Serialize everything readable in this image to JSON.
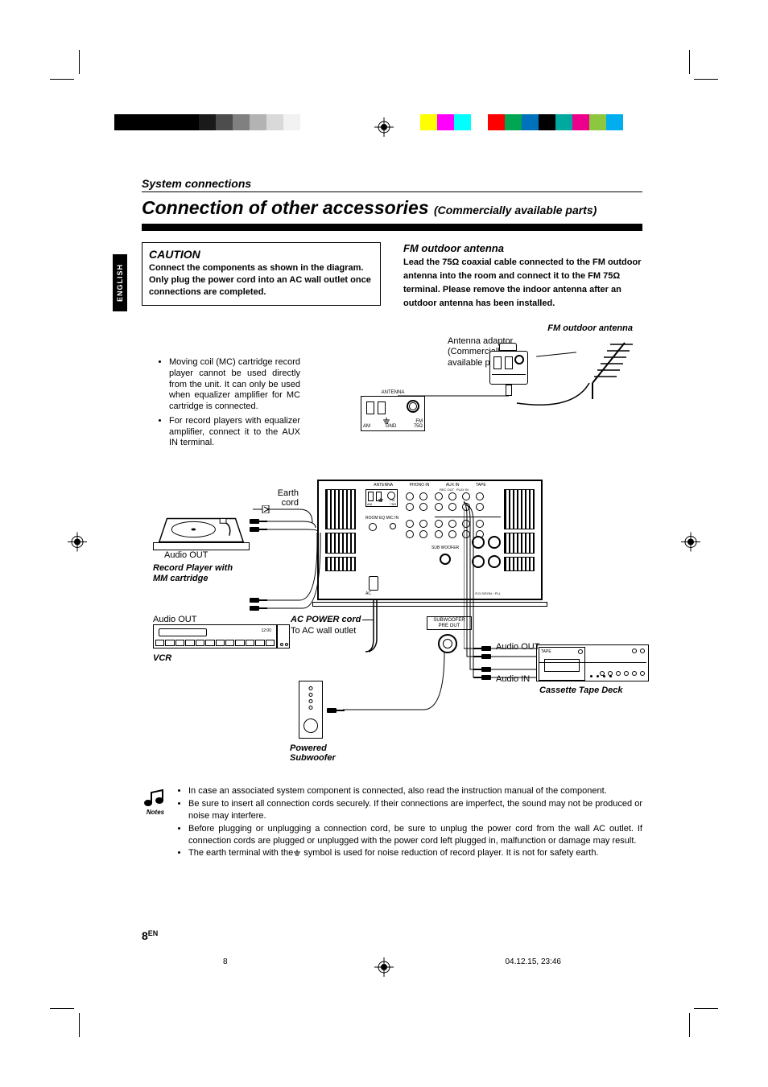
{
  "page": {
    "number": "8",
    "lang_suffix": "EN",
    "section_header": "System connections",
    "title_main": "Connection of other accessories",
    "title_sub": "(Commercially available parts)",
    "lang_tab": "ENGLISH"
  },
  "caution": {
    "heading": "CAUTION",
    "body": "Connect the components as shown in the diagram. Only plug the power cord into an AC wall outlet once connections are completed."
  },
  "fm": {
    "heading": "FM outdoor antenna",
    "body_parts": [
      "Lead the 75",
      " coaxial cable connected to the FM outdoor antenna into the room and connect it to the FM 75",
      " terminal. Please remove the indoor antenna after an outdoor antenna has been installed."
    ]
  },
  "diagram": {
    "fm_outdoor_label": "FM outdoor antenna",
    "adaptor_label": "Antenna adaptor (Commercially available parts)",
    "bullets": [
      "Moving coil (MC) cartridge record player cannot be used directly from the unit. It can only be used  when equalizer amplifier for MC cartridge is connected.",
      "For record players with equalizer amplifier, connect it to the AUX IN terminal."
    ],
    "earth_cord": "Earth cord",
    "audio_out": "Audio OUT",
    "audio_in": "Audio IN",
    "record_player": "Record Player with MM cartridge",
    "ac_power": "AC POWER cord",
    "ac_wall": "To AC wall outlet",
    "vcr": "VCR",
    "cassette": "Cassette Tape Deck",
    "powered_sub": "Powered Subwoofer",
    "subwoofer_preout": "SUBWOOFER PRE OUT",
    "antenna_box": "ANTENNA",
    "am": "AM",
    "gnd": "GND",
    "fm75": "FM 75Ω",
    "rear_labels": [
      "ANTENNA",
      "PHONO IN",
      "AUX IN",
      "TAPE",
      "REC OUT",
      "PLAY IN"
    ],
    "room_eq": "ROOM EQ MIC IN",
    "sub_preout_small": "SUB WOOFER",
    "rds": "R.D.S/EON",
    "pll": "PLL"
  },
  "notes": {
    "label": "Notes",
    "items": [
      "In case an associated system component is connected, also read the instruction manual of the component.",
      "Be sure to insert all connection cords securely. If their connections are imperfect, the sound may not be produced or noise may interfere.",
      "Before plugging or unplugging a connection cord, be sure to unplug the power cord from the wall AC outlet. If connection cords are plugged or unplugged with the power cord left plugged in, malfunction or damage may result.",
      "The earth terminal with the      symbol is used for noise reduction of record player. It is not for safety earth."
    ]
  },
  "footer": {
    "page_small": "8",
    "timestamp": "04.12.15, 23:46"
  },
  "colors": {
    "colorbar_right": [
      "#ffff00",
      "#ff00ff",
      "#00ffff",
      "#ffffff",
      "#ff0000",
      "#00a651",
      "#0072bc",
      "#000000",
      "#00a99d",
      "#ec008c",
      "#8dc63f",
      "#00aeef"
    ]
  }
}
